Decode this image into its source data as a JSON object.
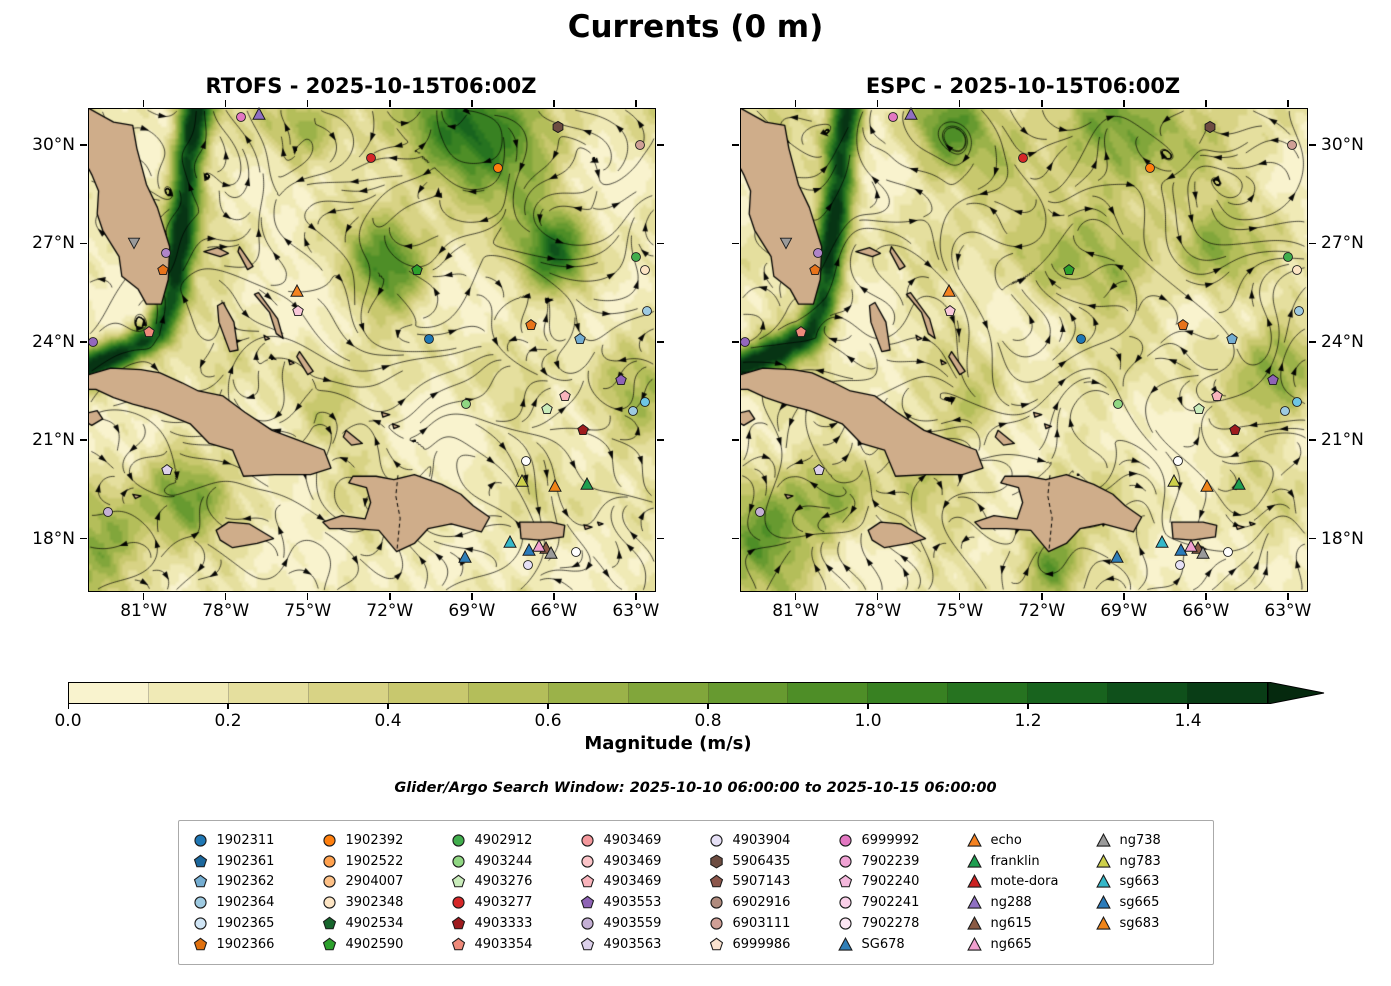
{
  "title": "Currents (0 m)",
  "panels": [
    {
      "title": "RTOFS - 2025-10-15T06:00Z"
    },
    {
      "title": "ESPC - 2025-10-15T06:00Z"
    }
  ],
  "axes": {
    "lat_ticks": [
      {
        "label": "30°N",
        "value": 30
      },
      {
        "label": "27°N",
        "value": 27
      },
      {
        "label": "24°N",
        "value": 24
      },
      {
        "label": "21°N",
        "value": 21
      },
      {
        "label": "18°N",
        "value": 18
      }
    ],
    "lon_ticks": [
      {
        "label": "81°W",
        "value": -81
      },
      {
        "label": "78°W",
        "value": -78
      },
      {
        "label": "75°W",
        "value": -75
      },
      {
        "label": "72°W",
        "value": -72
      },
      {
        "label": "69°W",
        "value": -69
      },
      {
        "label": "66°W",
        "value": -66
      },
      {
        "label": "63°W",
        "value": -63
      }
    ]
  },
  "colorbar": {
    "label": "Magnitude (m/s)",
    "tick_labels": [
      "0.0",
      "0.2",
      "0.4",
      "0.6",
      "0.8",
      "1.0",
      "1.2",
      "1.4"
    ],
    "tick_values": [
      0,
      0.2,
      0.4,
      0.6,
      0.8,
      1.0,
      1.2,
      1.4
    ],
    "bar_max": 1.5,
    "extend_color": "#05290e",
    "stops": [
      {
        "v": 0.0,
        "color": "#fcf7d9"
      },
      {
        "v": 0.1,
        "color": "#f5efc2"
      },
      {
        "v": 0.2,
        "color": "#ebe5aa"
      },
      {
        "v": 0.3,
        "color": "#dfd992"
      },
      {
        "v": 0.4,
        "color": "#d0cc78"
      },
      {
        "v": 0.5,
        "color": "#bfc364"
      },
      {
        "v": 0.6,
        "color": "#a8b851"
      },
      {
        "v": 0.7,
        "color": "#8fac41"
      },
      {
        "v": 0.8,
        "color": "#74a035"
      },
      {
        "v": 0.9,
        "color": "#5a942b"
      },
      {
        "v": 1.0,
        "color": "#428724"
      },
      {
        "v": 1.1,
        "color": "#2e7a20"
      },
      {
        "v": 1.2,
        "color": "#1e6c1f"
      },
      {
        "v": 1.3,
        "color": "#135a1d"
      },
      {
        "v": 1.4,
        "color": "#0b4719"
      },
      {
        "v": 1.5,
        "color": "#073414"
      }
    ]
  },
  "search_window": "Glider/Argo Search Window: 2025-10-10 06:00:00 to 2025-10-15 06:00:00",
  "legend": {
    "entries": [
      {
        "label": "1902311",
        "marker": "circle",
        "color": "#1f77b4"
      },
      {
        "label": "1902361",
        "marker": "pentagon",
        "color": "#1b679c"
      },
      {
        "label": "1902362",
        "marker": "pentagon",
        "color": "#74add1"
      },
      {
        "label": "1902364",
        "marker": "circle",
        "color": "#9ecae1"
      },
      {
        "label": "1902365",
        "marker": "circle",
        "color": "#d0e5f5"
      },
      {
        "label": "1902366",
        "marker": "pentagon",
        "color": "#e0700e"
      },
      {
        "label": "1902392",
        "marker": "circle",
        "color": "#ff7f0e"
      },
      {
        "label": "1902522",
        "marker": "circle",
        "color": "#ffa14e"
      },
      {
        "label": "2904007",
        "marker": "circle",
        "color": "#fdc086"
      },
      {
        "label": "3902348",
        "marker": "circle",
        "color": "#fde5c4"
      },
      {
        "label": "4902534",
        "marker": "pentagon",
        "color": "#17652c"
      },
      {
        "label": "4902590",
        "marker": "pentagon",
        "color": "#2ca02c"
      },
      {
        "label": "4902912",
        "marker": "circle",
        "color": "#41ae4d"
      },
      {
        "label": "4903244",
        "marker": "circle",
        "color": "#90d783"
      },
      {
        "label": "4903276",
        "marker": "pentagon",
        "color": "#c9ecbb"
      },
      {
        "label": "4903277",
        "marker": "circle",
        "color": "#d62728"
      },
      {
        "label": "4903333",
        "marker": "pentagon",
        "color": "#9e1b1e"
      },
      {
        "label": "4903354",
        "marker": "pentagon",
        "color": "#ef8a7a"
      },
      {
        "label": "4903469",
        "marker": "circle",
        "color": "#f4989c"
      },
      {
        "label": "4903469",
        "marker": "circle",
        "color": "#fbc4c8"
      },
      {
        "label": "4903469",
        "marker": "pentagon",
        "color": "#f9b4bc"
      },
      {
        "label": "4903553",
        "marker": "pentagon",
        "color": "#8e63b5"
      },
      {
        "label": "4903559",
        "marker": "circle",
        "color": "#c5b0d5"
      },
      {
        "label": "4903563",
        "marker": "pentagon",
        "color": "#ddd1eb"
      },
      {
        "label": "4903904",
        "marker": "circle",
        "color": "#e6e0f6"
      },
      {
        "label": "5906435",
        "marker": "hexagon",
        "color": "#6d4c41"
      },
      {
        "label": "5907143",
        "marker": "pentagon",
        "color": "#8c564b"
      },
      {
        "label": "6902916",
        "marker": "circle",
        "color": "#b08b7e"
      },
      {
        "label": "6903111",
        "marker": "circle",
        "color": "#cf9f96"
      },
      {
        "label": "6999986",
        "marker": "pentagon",
        "color": "#fbe3d0"
      },
      {
        "label": "6999992",
        "marker": "circle",
        "color": "#e377c2"
      },
      {
        "label": "7902239",
        "marker": "circle",
        "color": "#f0a2d4"
      },
      {
        "label": "7902240",
        "marker": "pentagon",
        "color": "#f4b8dc"
      },
      {
        "label": "7902241",
        "marker": "circle",
        "color": "#f9cfe8"
      },
      {
        "label": "7902278",
        "marker": "circle",
        "color": "#fce6f3"
      },
      {
        "label": "SG678",
        "marker": "triangle",
        "color": "#2f7fb8"
      },
      {
        "label": "echo",
        "marker": "triangle",
        "color": "#f58220"
      },
      {
        "label": "franklin",
        "marker": "triangle",
        "color": "#1d9e50"
      },
      {
        "label": "mote-dora",
        "marker": "triangle",
        "color": "#cc2222"
      },
      {
        "label": "ng288",
        "marker": "triangle",
        "color": "#8f6fc2"
      },
      {
        "label": "ng615",
        "marker": "triangle",
        "color": "#8a5a44"
      },
      {
        "label": "ng665",
        "marker": "triangle",
        "color": "#f2a0d0"
      },
      {
        "label": "ng738",
        "marker": "triangle",
        "color": "#9a9a9a"
      },
      {
        "label": "ng783",
        "marker": "triangle",
        "color": "#cdd04b"
      },
      {
        "label": "sg663",
        "marker": "triangle",
        "color": "#35b8c9"
      },
      {
        "label": "sg665",
        "marker": "triangle",
        "color": "#2b7bba"
      },
      {
        "label": "sg683",
        "marker": "triangle",
        "color": "#f08418"
      }
    ]
  },
  "chart_data": {
    "type": "heatmap",
    "subtype": "ocean-current-streamline-map",
    "title": "Currents (0 m)",
    "panels": [
      "RTOFS - 2025-10-15T06:00Z",
      "ESPC - 2025-10-15T06:00Z"
    ],
    "magnitude_units": "m/s",
    "magnitude_range": [
      0.0,
      1.5
    ],
    "extent": {
      "lon_min": -83,
      "lon_max": -62.3,
      "lat_min": 16.4,
      "lat_max": 31.1
    },
    "land_color": "#cfad8a",
    "markers": [
      {
        "lon": -77.45,
        "lat": 30.85,
        "shape": "circle",
        "color": "#e377c2"
      },
      {
        "lon": -76.8,
        "lat": 30.95,
        "shape": "triangle",
        "color": "#8f6fc2"
      },
      {
        "lon": -65.85,
        "lat": 30.55,
        "shape": "hexagon",
        "color": "#6d4c41"
      },
      {
        "lon": -62.85,
        "lat": 30.0,
        "shape": "circle",
        "color": "#cf9f96"
      },
      {
        "lon": -72.7,
        "lat": 29.6,
        "shape": "circle",
        "color": "#d62728"
      },
      {
        "lon": -68.05,
        "lat": 29.3,
        "shape": "circle",
        "color": "#ff7f0e"
      },
      {
        "lon": -80.2,
        "lat": 26.7,
        "shape": "circle",
        "color": "#b085c9"
      },
      {
        "lon": -80.3,
        "lat": 26.2,
        "shape": "pentagon",
        "color": "#e8731a"
      },
      {
        "lon": -71.0,
        "lat": 26.2,
        "shape": "pentagon",
        "color": "#2ca02c"
      },
      {
        "lon": -63.0,
        "lat": 26.6,
        "shape": "circle",
        "color": "#41ae4d"
      },
      {
        "lon": -62.65,
        "lat": 26.2,
        "shape": "circle",
        "color": "#fde5c4"
      },
      {
        "lon": -75.4,
        "lat": 25.55,
        "shape": "triangle",
        "color": "#f58220"
      },
      {
        "lon": -75.35,
        "lat": 24.95,
        "shape": "pentagon",
        "color": "#f9c8d9"
      },
      {
        "lon": -80.8,
        "lat": 24.3,
        "shape": "pentagon",
        "color": "#ef8a7a"
      },
      {
        "lon": -66.85,
        "lat": 24.5,
        "shape": "pentagon",
        "color": "#e8731a"
      },
      {
        "lon": -70.55,
        "lat": 24.1,
        "shape": "circle",
        "color": "#1f77b4"
      },
      {
        "lon": -65.05,
        "lat": 24.1,
        "shape": "pentagon",
        "color": "#74add1"
      },
      {
        "lon": -82.85,
        "lat": 24.0,
        "shape": "circle",
        "color": "#9467bd"
      },
      {
        "lon": -62.6,
        "lat": 24.95,
        "shape": "circle",
        "color": "#9ecae1"
      },
      {
        "lon": -63.55,
        "lat": 22.85,
        "shape": "pentagon",
        "color": "#8e63b5"
      },
      {
        "lon": -65.6,
        "lat": 22.35,
        "shape": "pentagon",
        "color": "#f9b4bc"
      },
      {
        "lon": -66.25,
        "lat": 21.95,
        "shape": "pentagon",
        "color": "#c9ecbb"
      },
      {
        "lon": -69.2,
        "lat": 22.1,
        "shape": "circle",
        "color": "#90d783"
      },
      {
        "lon": -64.95,
        "lat": 21.3,
        "shape": "pentagon",
        "color": "#9e1b1e"
      },
      {
        "lon": -63.1,
        "lat": 21.9,
        "shape": "circle",
        "color": "#9ecae1"
      },
      {
        "lon": -62.65,
        "lat": 22.15,
        "shape": "circle",
        "color": "#6ec6e4"
      },
      {
        "lon": -80.15,
        "lat": 20.1,
        "shape": "pentagon",
        "color": "#ddd1eb"
      },
      {
        "lon": -67.15,
        "lat": 19.75,
        "shape": "triangle",
        "color": "#cdd04b"
      },
      {
        "lon": -65.95,
        "lat": 19.6,
        "shape": "triangle",
        "color": "#f08418"
      },
      {
        "lon": -64.8,
        "lat": 19.65,
        "shape": "triangle",
        "color": "#1d9e50"
      },
      {
        "lon": -67.6,
        "lat": 17.9,
        "shape": "triangle",
        "color": "#35b8c9"
      },
      {
        "lon": -66.9,
        "lat": 17.65,
        "shape": "triangle",
        "color": "#2b7bba"
      },
      {
        "lon": -66.3,
        "lat": 17.7,
        "shape": "triangle",
        "color": "#8a5a44"
      },
      {
        "lon": -66.55,
        "lat": 17.78,
        "shape": "triangle",
        "color": "#f2a0d0"
      },
      {
        "lon": -66.1,
        "lat": 17.55,
        "shape": "triangle",
        "color": "#9a9a9a"
      },
      {
        "lon": -69.25,
        "lat": 17.45,
        "shape": "triangle",
        "color": "#2f7fb8"
      },
      {
        "lon": -66.95,
        "lat": 17.2,
        "shape": "circle",
        "color": "#e6e0f6"
      },
      {
        "lon": -65.2,
        "lat": 17.6,
        "shape": "circle",
        "color": "#ffffff"
      },
      {
        "lon": -82.3,
        "lat": 18.8,
        "shape": "circle",
        "color": "#c5b0d5"
      },
      {
        "lon": -67.0,
        "lat": 20.35,
        "shape": "circle",
        "color": "#ffffff"
      },
      {
        "lon": -81.35,
        "lat": 27.0,
        "shape": "tri-down",
        "color": "#9a9a9a"
      }
    ]
  }
}
